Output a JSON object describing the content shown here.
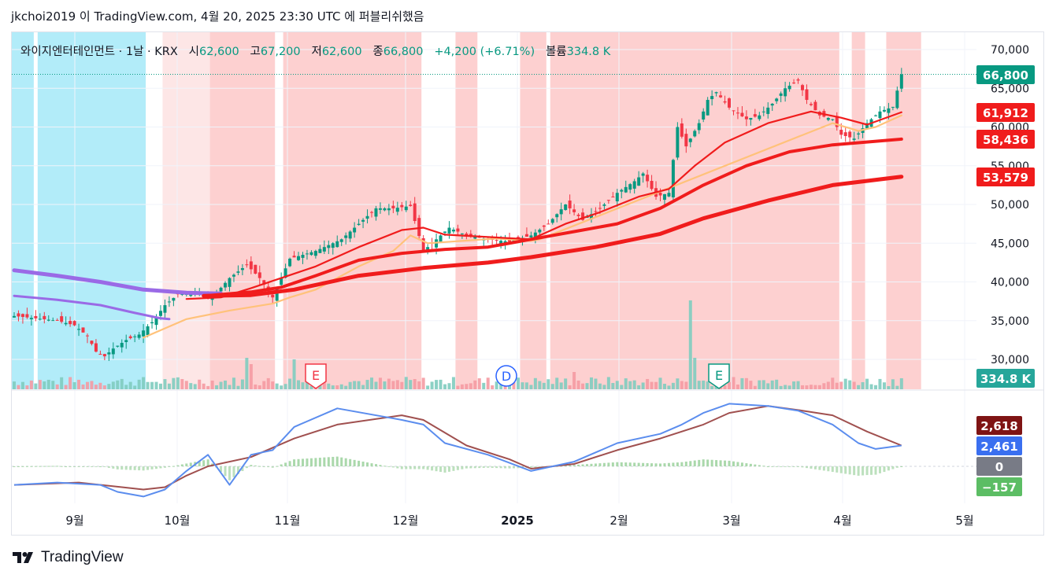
{
  "header": {
    "text": "jkchoi2019 이 TradingView.com, 4월 20, 2025 23:30 UTC 에 퍼블리쉬했음"
  },
  "legend": {
    "title": "와이지엔터테인먼트 · 1날 · KRX",
    "open_label": "시",
    "open": "62,600",
    "high_label": "고",
    "high": "67,200",
    "low_label": "저",
    "low": "62,600",
    "close_label": "종",
    "close": "66,800",
    "change": "+4,200 (+6.71%)",
    "volume_label": "볼륨",
    "volume": "334.8 K"
  },
  "footer": {
    "brand": "TradingView"
  },
  "colors": {
    "up": "#089981",
    "down": "#f23645",
    "ma_red": "#f01c1c",
    "purple": "#9a6ae6",
    "orange": "#ffc27a",
    "macd": "#5b8dee",
    "signal": "#a0504f",
    "bg_red": "#fdd0d0",
    "bg_lightred": "#fde6e6",
    "bg_blue": "#b2ecf9"
  },
  "chart_data": {
    "type": "candlestick",
    "symbol": "와이지엔터테인먼트",
    "interval": "1날",
    "exchange": "KRX",
    "price_axis": {
      "ticks": [
        "70,000",
        "65,000",
        "60,000",
        "55,000",
        "50,000",
        "45,000",
        "40,000",
        "35,000",
        "30,000"
      ],
      "ylim": [
        27000,
        72500
      ]
    },
    "x_labels": [
      "9월",
      "10월",
      "11월",
      "12월",
      "2025",
      "2월",
      "3월",
      "4월",
      "5월"
    ],
    "price_labels": [
      {
        "text": "66,800",
        "color": "#089981"
      },
      {
        "text": "61,912",
        "color": "#f01c1c"
      },
      {
        "text": "58,436",
        "color": "#f01c1c"
      },
      {
        "text": "53,579",
        "color": "#f01c1c"
      },
      {
        "text": "334.8 K",
        "color": "#26a69a"
      }
    ],
    "events": [
      {
        "label": "E",
        "type": "earnings"
      },
      {
        "label": "D",
        "type": "dividend"
      },
      {
        "label": "E",
        "type": "earnings"
      }
    ],
    "close_path": [
      [
        0,
        35600
      ],
      [
        5,
        35300
      ],
      [
        10,
        35000
      ],
      [
        14,
        34400
      ],
      [
        17,
        33000
      ],
      [
        19,
        31000
      ],
      [
        21,
        30400
      ],
      [
        23,
        31400
      ],
      [
        26,
        32500
      ],
      [
        29,
        33200
      ],
      [
        32,
        34800
      ],
      [
        35,
        37000
      ],
      [
        38,
        38400
      ],
      [
        42,
        38800
      ],
      [
        46,
        38000
      ],
      [
        50,
        40500
      ],
      [
        54,
        42200
      ],
      [
        57,
        40500
      ],
      [
        60,
        38000
      ],
      [
        64,
        43000
      ],
      [
        70,
        44000
      ],
      [
        76,
        45500
      ],
      [
        80,
        47500
      ],
      [
        84,
        49500
      ],
      [
        88,
        49500
      ],
      [
        92,
        49800
      ],
      [
        95,
        44000
      ],
      [
        98,
        45500
      ],
      [
        101,
        47000
      ],
      [
        105,
        46000
      ],
      [
        110,
        45500
      ],
      [
        115,
        45200
      ],
      [
        120,
        46000
      ],
      [
        124,
        47500
      ],
      [
        128,
        50000
      ],
      [
        132,
        48000
      ],
      [
        136,
        49500
      ],
      [
        140,
        51500
      ],
      [
        144,
        53000
      ],
      [
        146,
        54000
      ],
      [
        149,
        51000
      ],
      [
        152,
        51500
      ],
      [
        154,
        60000
      ],
      [
        156,
        57500
      ],
      [
        159,
        60500
      ],
      [
        161,
        63500
      ],
      [
        163,
        64500
      ],
      [
        166,
        62500
      ],
      [
        170,
        61000
      ],
      [
        173,
        61500
      ],
      [
        176,
        63000
      ],
      [
        179,
        65000
      ],
      [
        182,
        66000
      ],
      [
        184,
        63500
      ],
      [
        187,
        61500
      ],
      [
        190,
        61000
      ],
      [
        192,
        59000
      ],
      [
        195,
        58500
      ],
      [
        198,
        60500
      ],
      [
        201,
        62000
      ],
      [
        204,
        62600
      ],
      [
        206,
        66800
      ]
    ],
    "ma_fast": [
      [
        40,
        37800
      ],
      [
        48,
        38000
      ],
      [
        55,
        39200
      ],
      [
        62,
        40500
      ],
      [
        70,
        42000
      ],
      [
        80,
        44500
      ],
      [
        90,
        46700
      ],
      [
        95,
        47000
      ],
      [
        100,
        46100
      ],
      [
        110,
        45800
      ],
      [
        120,
        45500
      ],
      [
        128,
        47500
      ],
      [
        136,
        49000
      ],
      [
        145,
        51000
      ],
      [
        152,
        52000
      ],
      [
        158,
        55000
      ],
      [
        165,
        58000
      ],
      [
        175,
        60500
      ],
      [
        185,
        62000
      ],
      [
        192,
        61200
      ],
      [
        198,
        60300
      ],
      [
        206,
        61912
      ]
    ],
    "ma_mid": [
      [
        44,
        38200
      ],
      [
        55,
        38700
      ],
      [
        62,
        39300
      ],
      [
        70,
        40800
      ],
      [
        80,
        42800
      ],
      [
        90,
        43700
      ],
      [
        100,
        44200
      ],
      [
        110,
        44500
      ],
      [
        120,
        45500
      ],
      [
        130,
        46500
      ],
      [
        140,
        47500
      ],
      [
        150,
        49500
      ],
      [
        160,
        52500
      ],
      [
        170,
        55000
      ],
      [
        180,
        56800
      ],
      [
        190,
        57700
      ],
      [
        206,
        58436
      ]
    ],
    "ma_slow": [
      [
        44,
        38200
      ],
      [
        55,
        38300
      ],
      [
        65,
        39000
      ],
      [
        80,
        40800
      ],
      [
        95,
        41800
      ],
      [
        110,
        42500
      ],
      [
        120,
        43200
      ],
      [
        135,
        44500
      ],
      [
        150,
        46200
      ],
      [
        160,
        48200
      ],
      [
        175,
        50500
      ],
      [
        190,
        52500
      ],
      [
        206,
        53579
      ]
    ],
    "ma_orange": [
      [
        30,
        32800
      ],
      [
        40,
        35200
      ],
      [
        50,
        36300
      ],
      [
        60,
        37200
      ],
      [
        64,
        38000
      ],
      [
        70,
        39000
      ],
      [
        80,
        42000
      ],
      [
        88,
        44000
      ],
      [
        92,
        46000
      ],
      [
        96,
        45000
      ],
      [
        104,
        45300
      ],
      [
        112,
        45600
      ],
      [
        120,
        45300
      ],
      [
        122,
        45500
      ],
      [
        190,
        60500
      ],
      [
        196,
        59500
      ],
      [
        200,
        60000
      ],
      [
        206,
        61500
      ]
    ],
    "ma_purple_upper": [
      [
        0,
        41500
      ],
      [
        10,
        40800
      ],
      [
        20,
        40000
      ],
      [
        30,
        39000
      ],
      [
        40,
        38600
      ],
      [
        48,
        38500
      ]
    ],
    "ma_purple_lower": [
      [
        0,
        38200
      ],
      [
        10,
        37700
      ],
      [
        20,
        37000
      ],
      [
        28,
        36000
      ],
      [
        34,
        35300
      ],
      [
        36,
        35200
      ]
    ],
    "macd_axis": {
      "labels": [
        {
          "text": "2,618",
          "color": "#7f1414"
        },
        {
          "text": "2,461",
          "color": "#3a6ff0"
        },
        {
          "text": "0",
          "color": "#787b86"
        },
        {
          "text": "−157",
          "color": "#5cbd64"
        }
      ]
    }
  }
}
